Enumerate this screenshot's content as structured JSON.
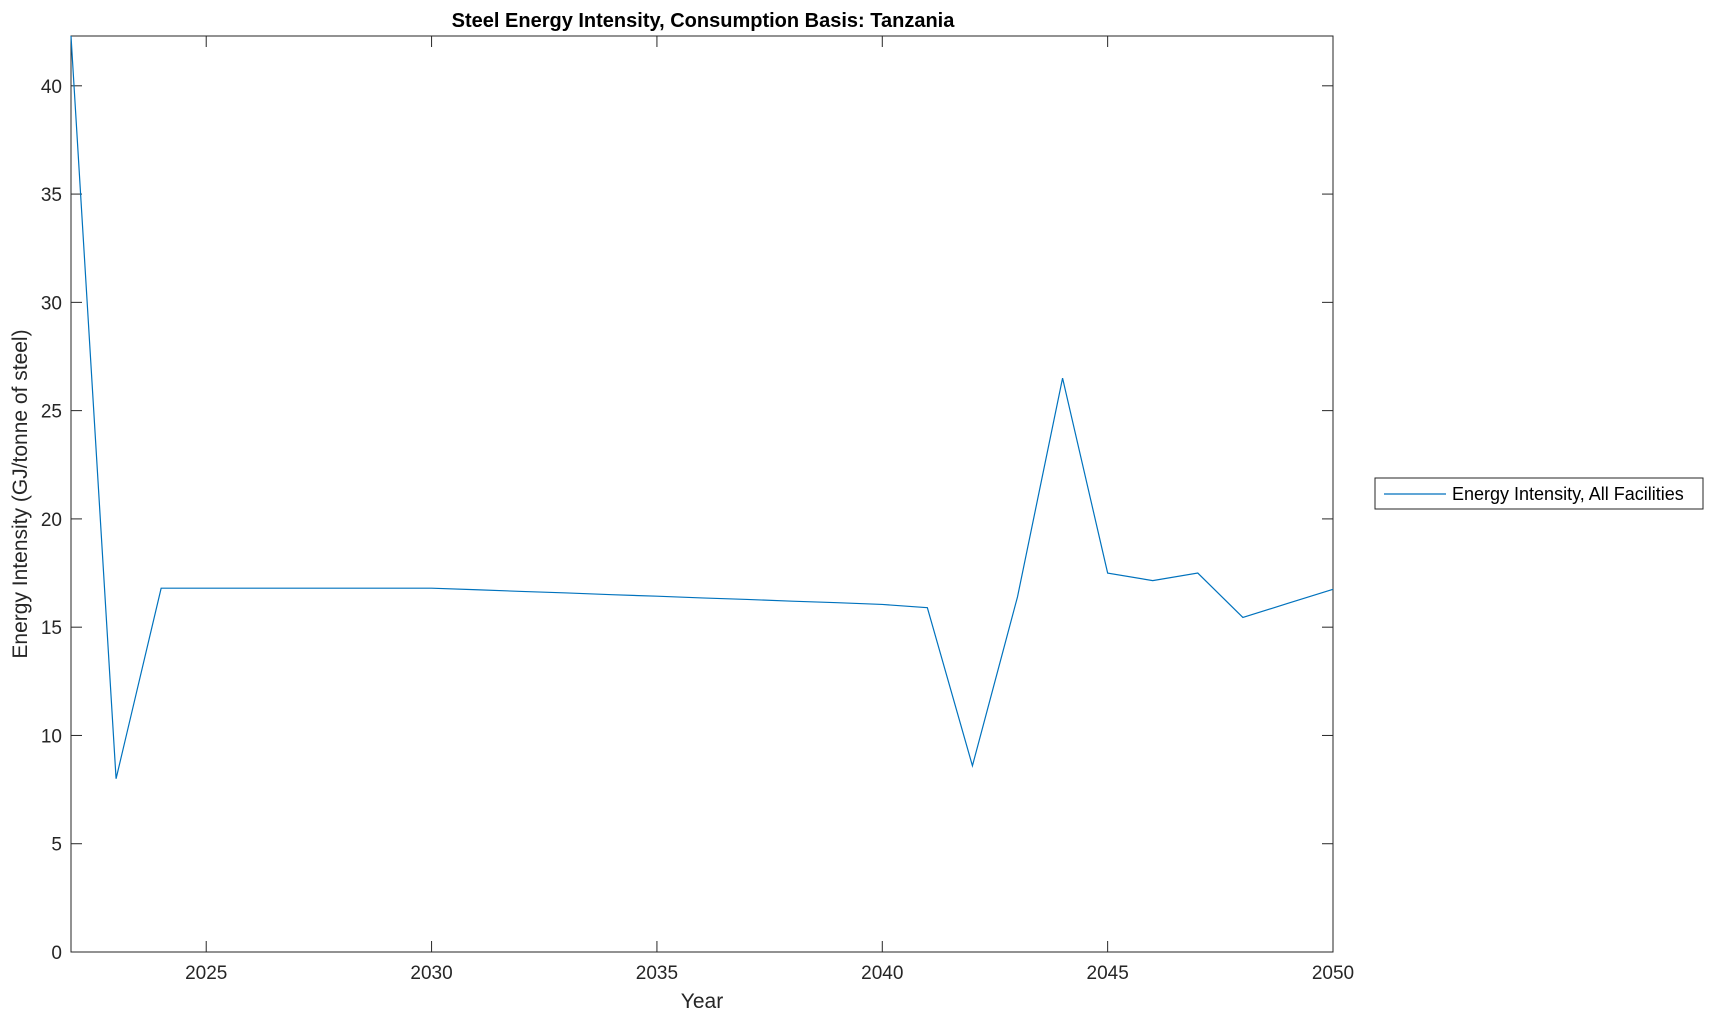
{
  "chart_data": {
    "type": "line",
    "title": "Steel Energy Intensity, Consumption Basis: Tanzania",
    "xlabel": "Year",
    "ylabel": "Energy Intensity (GJ/tonne of steel)",
    "xlim": [
      2022,
      2050
    ],
    "ylim": [
      0,
      42.3
    ],
    "xticks": [
      2025,
      2030,
      2035,
      2040,
      2045,
      2050
    ],
    "yticks": [
      0,
      5,
      10,
      15,
      20,
      25,
      30,
      35,
      40
    ],
    "grid": false,
    "legend_position": "outside-right",
    "series": [
      {
        "name": "Energy Intensity, All Facilities",
        "color": "#0072BD",
        "x": [
          2022,
          2023,
          2024,
          2025,
          2026,
          2027,
          2028,
          2029,
          2030,
          2031,
          2032,
          2033,
          2034,
          2035,
          2036,
          2037,
          2038,
          2039,
          2040,
          2041,
          2042,
          2043,
          2044,
          2045,
          2046,
          2047,
          2048,
          2049,
          2050
        ],
        "y": [
          42.3,
          8.0,
          16.8,
          16.8,
          16.8,
          16.8,
          16.8,
          16.8,
          16.8,
          16.73,
          16.65,
          16.58,
          16.5,
          16.43,
          16.35,
          16.28,
          16.2,
          16.13,
          16.05,
          15.9,
          8.6,
          16.4,
          26.5,
          17.5,
          17.15,
          17.5,
          15.45,
          16.1,
          16.75
        ]
      }
    ]
  }
}
